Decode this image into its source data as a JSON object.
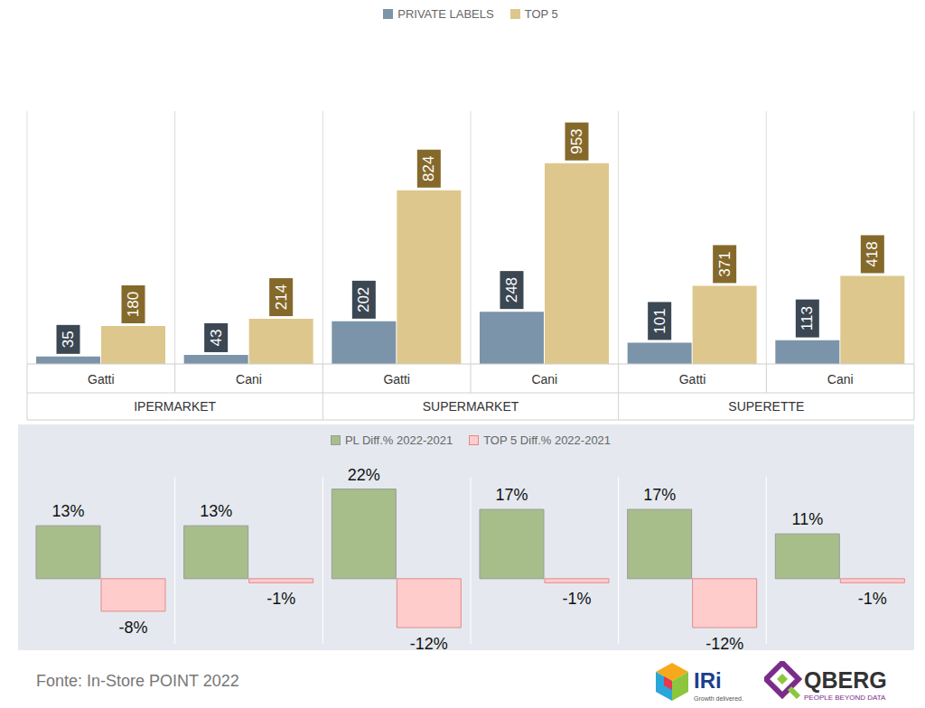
{
  "chart_data": [
    {
      "type": "bar",
      "categories": [
        "Gatti",
        "Cani",
        "Gatti",
        "Cani",
        "Gatti",
        "Cani"
      ],
      "groups": [
        "IPERMARKET",
        "IPERMARKET",
        "SUPERMARKET",
        "SUPERMARKET",
        "SUPERETTE",
        "SUPERETTE"
      ],
      "series": [
        {
          "name": "PRIVATE LABELS",
          "color": "#7b94a9",
          "values": [
            35,
            43,
            202,
            248,
            101,
            113
          ]
        },
        {
          "name": "TOP 5",
          "color": "#dec78c",
          "values": [
            180,
            214,
            824,
            953,
            371,
            418
          ]
        }
      ],
      "ylim": [
        0,
        1200
      ],
      "yticks": [],
      "legend": "top",
      "data_labels": true,
      "tick_labels": "x"
    },
    {
      "type": "bar",
      "categories": [
        null,
        null,
        null,
        null,
        null,
        null
      ],
      "series": [
        {
          "name": "PL Diff.% 2022-2021",
          "color": "#a7be8b",
          "values": [
            13,
            13,
            22,
            17,
            17,
            11
          ],
          "value_labels": [
            "13%",
            "13%",
            "22%",
            "17%",
            "17%",
            "11%"
          ]
        },
        {
          "name": "TOP 5 Diff.% 2022-2021",
          "color": "#ffcccc",
          "values": [
            -8,
            -1,
            -12,
            -1,
            -12,
            -1
          ],
          "value_labels": [
            "-8%",
            "-1%",
            "-12%",
            "-1%",
            "-12%",
            "-1%"
          ]
        }
      ],
      "ylim": [
        -16,
        25
      ],
      "yticks": [],
      "legend": "top",
      "data_labels": true,
      "tick_labels": false
    }
  ],
  "source": "Fonte: In-Store POINT 2022",
  "logos": [
    {
      "name": "IRi",
      "tagline": "Growth delivered."
    },
    {
      "name": "QBERG",
      "tagline": "PEOPLE BEYOND DATA"
    }
  ]
}
